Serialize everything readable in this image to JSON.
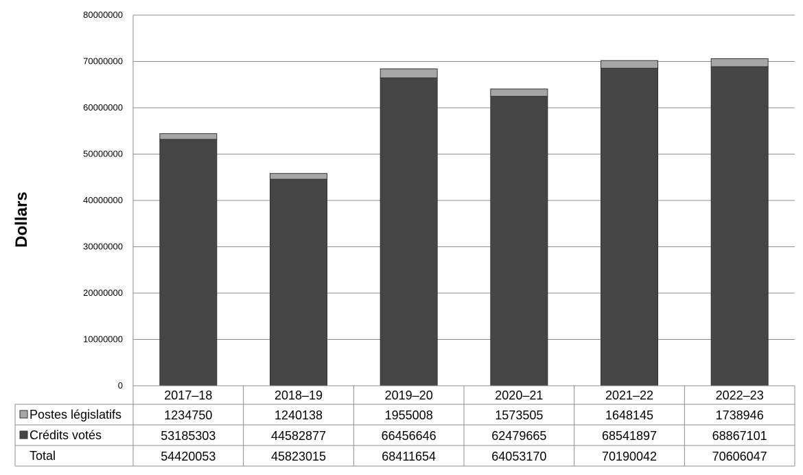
{
  "chart_data": {
    "type": "bar",
    "stacked": true,
    "categories": [
      "2017–18",
      "2018–19",
      "2019–20",
      "2020–21",
      "2021–22",
      "2022–23"
    ],
    "series": [
      {
        "name": "Crédits votés",
        "values": [
          53185303,
          44582877,
          66456646,
          62479665,
          68541897,
          68867101
        ],
        "color": "#464646"
      },
      {
        "name": "Postes législatifs",
        "values": [
          1234750,
          1240138,
          1955008,
          1573505,
          1648145,
          1738946
        ],
        "color": "#a6a6a6"
      }
    ],
    "total_label": "Total",
    "totals": [
      54420053,
      45823015,
      68411654,
      64053170,
      70190042,
      70606047
    ],
    "ylabel": "Dollars",
    "xlabel": "",
    "ylim": [
      0,
      80000000
    ],
    "yticks": [
      0,
      10000000,
      20000000,
      30000000,
      40000000,
      50000000,
      60000000,
      70000000,
      80000000
    ],
    "grid": true,
    "legend": "data-table"
  }
}
